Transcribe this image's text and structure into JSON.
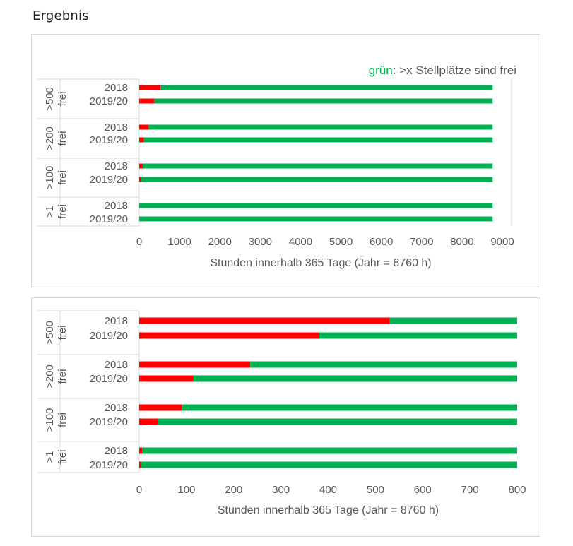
{
  "page": {
    "heading": "Ergebnis"
  },
  "colors": {
    "occupied": "#ff0000",
    "free": "#00b050",
    "axis": "#d9d9d9",
    "text": "#595959"
  },
  "chart_data": [
    {
      "type": "bar",
      "stacked": true,
      "orientation": "horizontal",
      "annotation": {
        "colored_word": "grün",
        "rest": ": >x Stellplätze sind frei"
      },
      "groups": [
        ">500 frei",
        ">200 frei",
        ">100 frei",
        ">1 frei"
      ],
      "categories": [
        "2018",
        "2019/20"
      ],
      "series": [
        {
          "color": "red",
          "values": [
            [
              530,
              380
            ],
            [
              235,
              115
            ],
            [
              90,
              40
            ],
            [
              6,
              3
            ]
          ]
        },
        {
          "color": "green",
          "values": [
            [
              8230,
              8380
            ],
            [
              8525,
              8645
            ],
            [
              8670,
              8720
            ],
            [
              8754,
              8757
            ]
          ]
        }
      ],
      "xlabel": "Stunden innerhalb 365 Tage (Jahr = 8760 h)",
      "xlim": [
        0,
        9000
      ],
      "xticks": [
        "0",
        "1000",
        "2000",
        "3000",
        "4000",
        "5000",
        "6000",
        "7000",
        "8000",
        "9000"
      ]
    },
    {
      "type": "bar",
      "stacked": true,
      "orientation": "horizontal",
      "groups": [
        ">500 frei",
        ">200 frei",
        ">100 frei",
        ">1 frei"
      ],
      "categories": [
        "2018",
        "2019/20"
      ],
      "series": [
        {
          "color": "red",
          "values": [
            [
              530,
              380
            ],
            [
              235,
              115
            ],
            [
              90,
              40
            ],
            [
              6,
              3
            ]
          ]
        },
        {
          "color": "green",
          "values": [
            [
              270,
              420
            ],
            [
              565,
              685
            ],
            [
              710,
              760
            ],
            [
              794,
              797
            ]
          ]
        }
      ],
      "xlabel": "Stunden innerhalb 365 Tage (Jahr = 8760 h)",
      "xlim": [
        0,
        800
      ],
      "xticks": [
        "0",
        "100",
        "200",
        "300",
        "400",
        "500",
        "600",
        "700",
        "800"
      ]
    }
  ]
}
